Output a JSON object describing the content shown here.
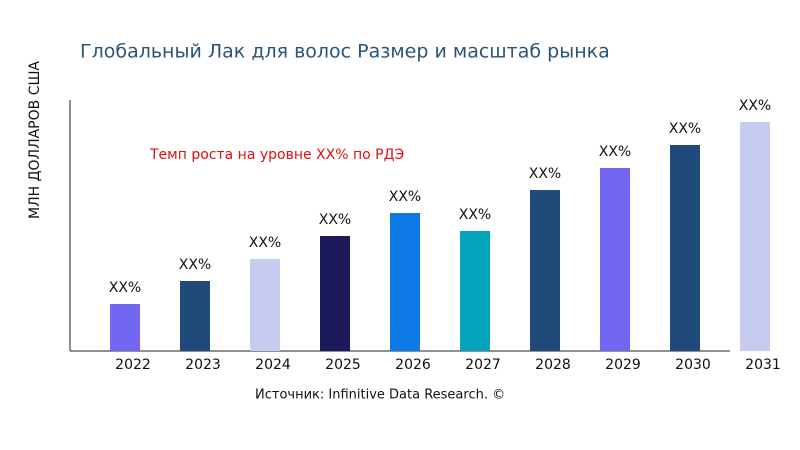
{
  "chart_data": {
    "type": "bar",
    "title": "Глобальный Лак для волос Размер и масштаб рынка",
    "y_label": "МЛН ДОЛЛАРОВ США",
    "annotation": "Темп роста на уровне XX% по РДЭ",
    "source": "Источник: Infinitive Data Research. ©",
    "categories": [
      "2022",
      "2023",
      "2024",
      "2025",
      "2026",
      "2027",
      "2028",
      "2029",
      "2030",
      "2031"
    ],
    "values": [
      47,
      70,
      92,
      115,
      138,
      120,
      161,
      183,
      206,
      229
    ],
    "value_labels": [
      "XX%",
      "XX%",
      "XX%",
      "XX%",
      "XX%",
      "XX%",
      "XX%",
      "XX%",
      "XX%",
      "XX%"
    ],
    "colors": [
      "#7366f0",
      "#1f4a7a",
      "#c8cbf0",
      "#1c1a5a",
      "#0e7ae6",
      "#03a3bb",
      "#1f4a7a",
      "#7366f0",
      "#1f4a7a",
      "#c8cbf0"
    ],
    "ylim": [
      0,
      250
    ]
  }
}
